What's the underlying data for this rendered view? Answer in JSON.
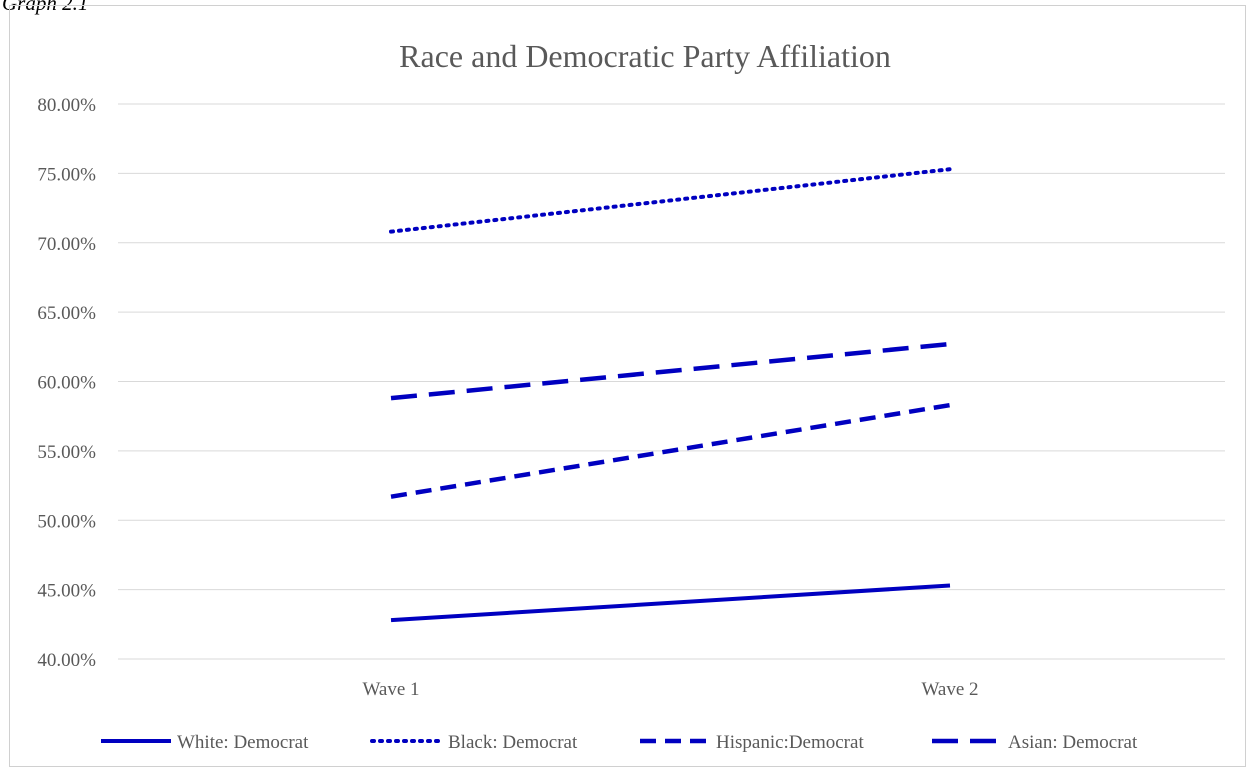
{
  "caption": "Graph 2.1",
  "chart_data": {
    "type": "line",
    "title": "Race and Democratic Party Affiliation",
    "xlabel": "",
    "ylabel": "",
    "categories": [
      "Wave 1",
      "Wave 2"
    ],
    "ylim": [
      40,
      80
    ],
    "y_ticks": [
      "40.00%",
      "45.00%",
      "50.00%",
      "55.00%",
      "60.00%",
      "65.00%",
      "70.00%",
      "75.00%",
      "80.00%"
    ],
    "grid": true,
    "legend_position": "bottom",
    "series": [
      {
        "name": "White: Democrat",
        "values": [
          42.8,
          45.3
        ],
        "style": "solid",
        "color": "#0000c0"
      },
      {
        "name": "Black: Democrat",
        "values": [
          70.8,
          75.3
        ],
        "style": "dotted",
        "color": "#0000c0"
      },
      {
        "name": "Hispanic:Democrat",
        "values": [
          51.7,
          58.3
        ],
        "style": "dashed",
        "color": "#0000c0"
      },
      {
        "name": "Asian: Democrat",
        "values": [
          58.8,
          62.7
        ],
        "style": "long-dashed",
        "color": "#0000c0"
      }
    ]
  }
}
